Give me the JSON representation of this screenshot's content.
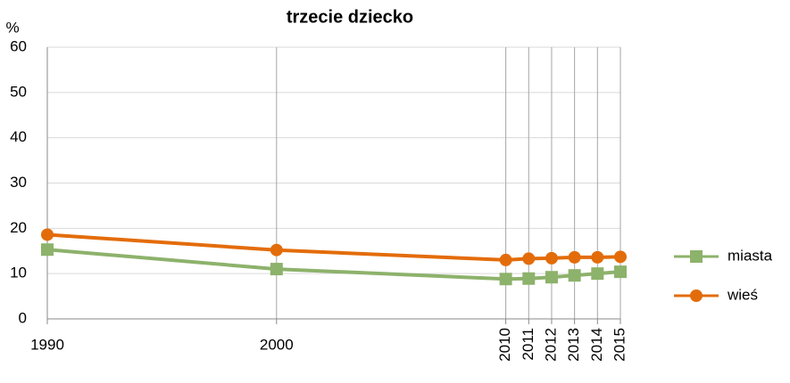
{
  "chart_data": {
    "type": "line",
    "title": "trzecie dziecko",
    "y_label": "%",
    "x": [
      1990,
      2000,
      2010,
      2011,
      2012,
      2013,
      2014,
      2015
    ],
    "series": [
      {
        "name": "miasta",
        "color": "#8db26b",
        "marker": "square",
        "values": [
          15.3,
          11.0,
          8.8,
          8.9,
          9.2,
          9.6,
          10.0,
          10.4
        ]
      },
      {
        "name": "wieś",
        "color": "#e36c0a",
        "marker": "circle",
        "values": [
          18.6,
          15.2,
          13.0,
          13.3,
          13.4,
          13.6,
          13.6,
          13.7
        ]
      }
    ],
    "xlim": [
      1990,
      2015
    ],
    "xticks": [
      1990,
      2000,
      2010,
      2011,
      2012,
      2013,
      2014,
      2015
    ],
    "ylim": [
      0,
      60
    ],
    "yticks": [
      0,
      10,
      20,
      30,
      40,
      50,
      60
    ],
    "grid": true,
    "legend": "right"
  }
}
